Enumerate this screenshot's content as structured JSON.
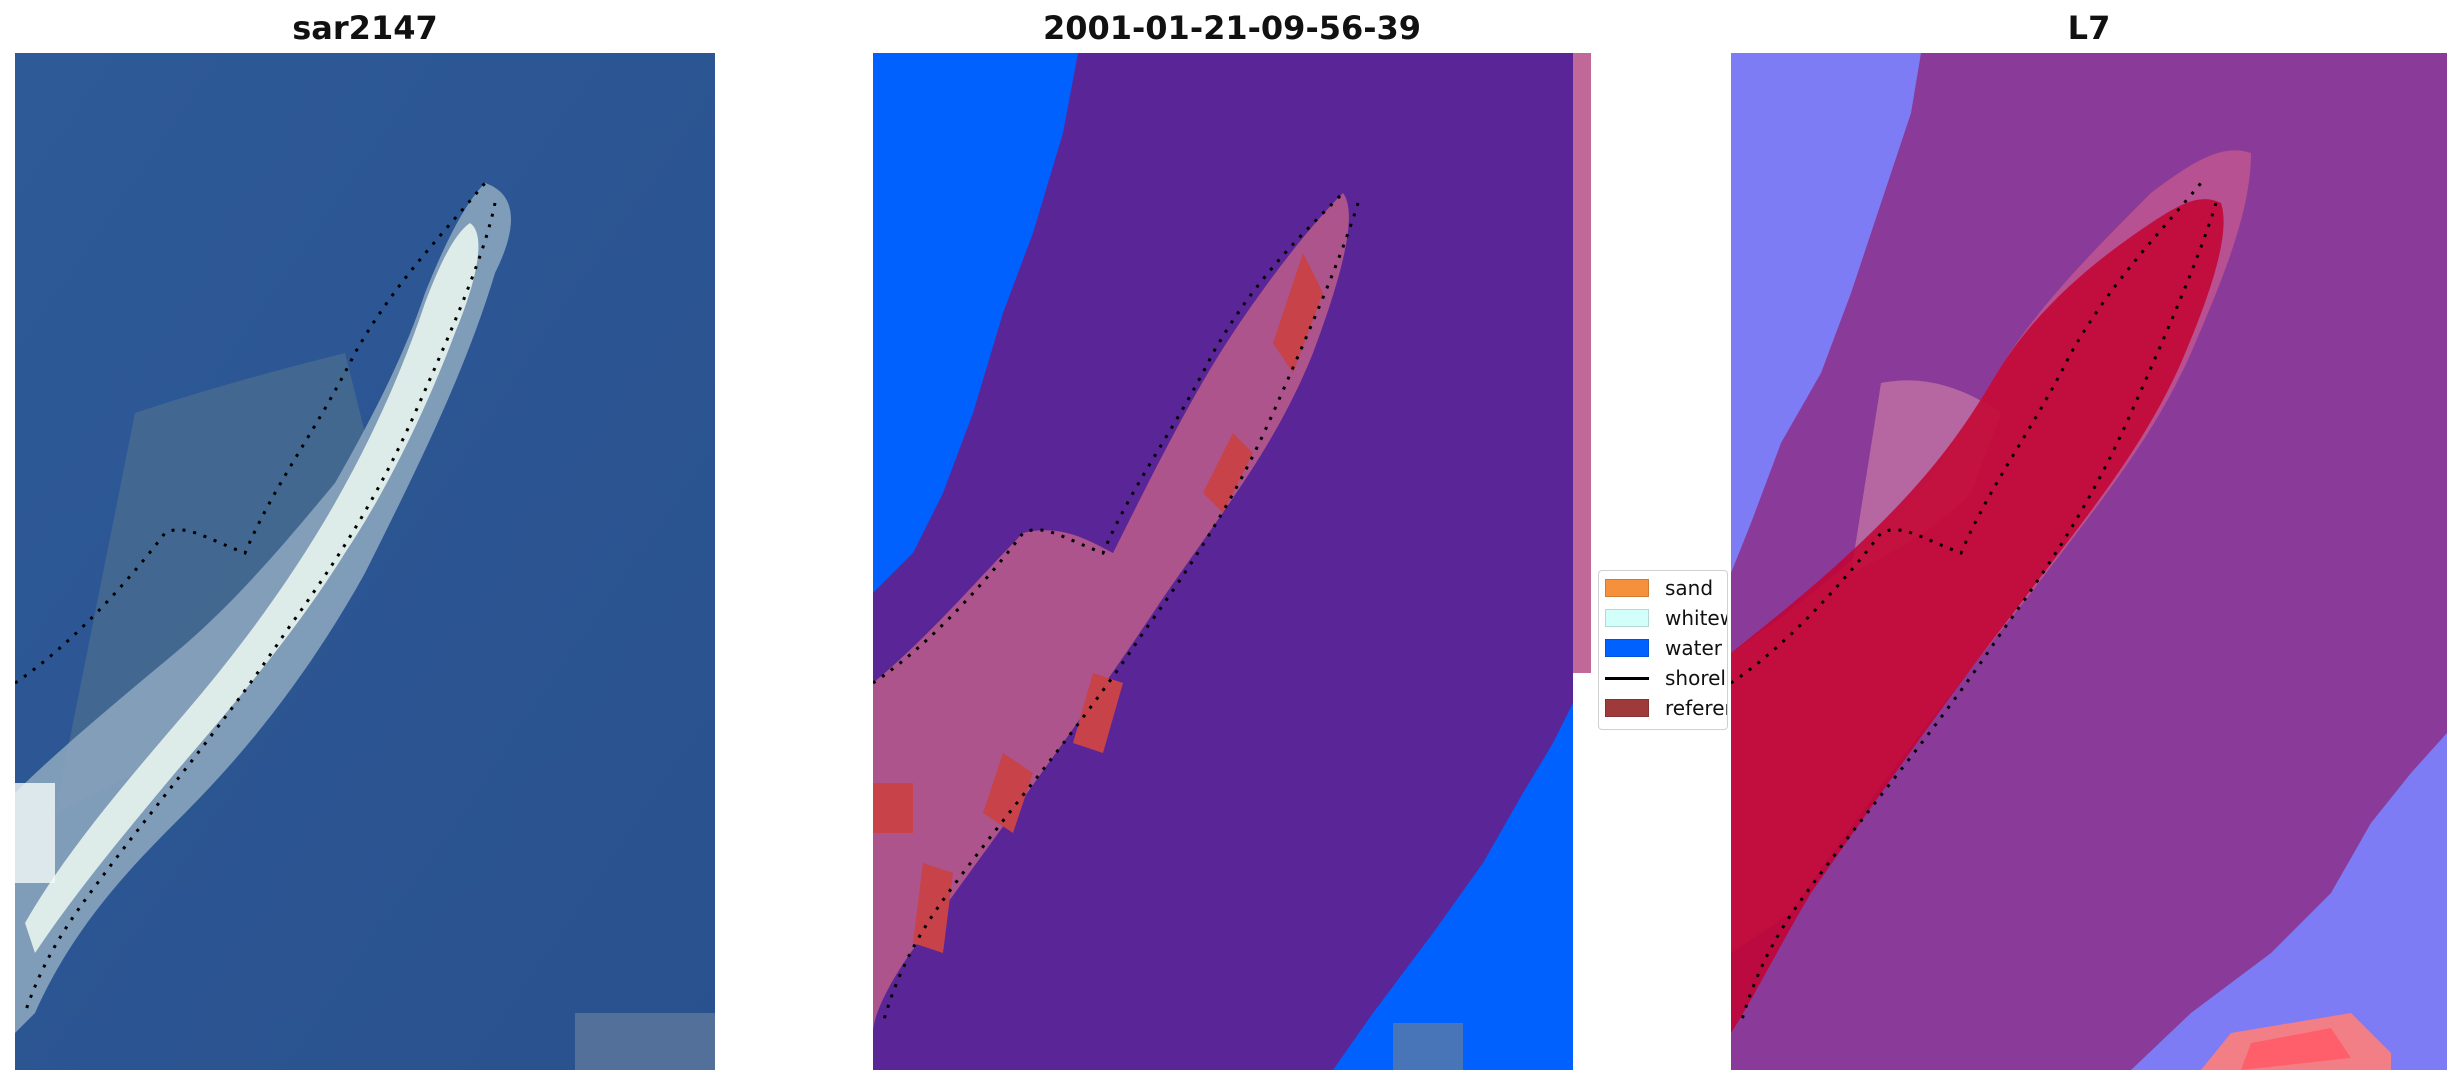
{
  "panels": [
    {
      "title": "sar2147"
    },
    {
      "title": "2001-01-21-09-56-39"
    },
    {
      "title": "L7"
    }
  ],
  "legend": {
    "items": [
      {
        "label": "sand",
        "color": "#f5913c",
        "kind": "patch"
      },
      {
        "label": "whitewater",
        "color": "#d2fffa",
        "kind": "patch"
      },
      {
        "label": "water",
        "color": "#0061ff",
        "kind": "patch"
      },
      {
        "label": "shoreline",
        "color": "#000000",
        "kind": "line"
      },
      {
        "label": "reference",
        "color": "#9e3a3a",
        "kind": "patch"
      }
    ]
  },
  "colors": {
    "rgb_water": "#2a5493",
    "class_water": "#0061ff",
    "class_other": "#5a2597",
    "class_spit": "#b55a8a",
    "class_sand": "#c8424a",
    "mndwi_low": "#8a3b9a",
    "mndwi_high": "#c3022f",
    "mndwi_water": "#7d7cf5"
  }
}
